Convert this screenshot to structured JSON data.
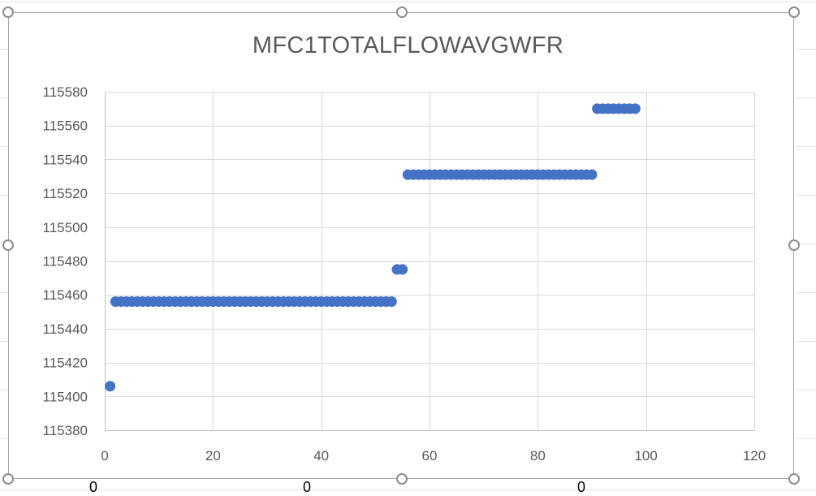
{
  "window": {
    "cell_fragments": [
      "0",
      "0",
      "0"
    ]
  },
  "chart_data": {
    "type": "scatter",
    "title": "MFC1TOTALFLOWAVGWFR",
    "xlabel": "",
    "ylabel": "",
    "xlim": [
      0,
      120
    ],
    "ylim": [
      115380,
      115580
    ],
    "x_ticks": [
      0,
      20,
      40,
      60,
      80,
      100,
      120
    ],
    "y_ticks": [
      115380,
      115400,
      115420,
      115440,
      115460,
      115480,
      115500,
      115520,
      115540,
      115560,
      115580
    ],
    "grid": true,
    "legend": "none",
    "marker_color": "#4472c4",
    "series": [
      {
        "points": [
          [
            1,
            115406
          ],
          [
            2,
            115456
          ],
          [
            3,
            115456
          ],
          [
            4,
            115456
          ],
          [
            5,
            115456
          ],
          [
            6,
            115456
          ],
          [
            7,
            115456
          ],
          [
            8,
            115456
          ],
          [
            9,
            115456
          ],
          [
            10,
            115456
          ],
          [
            11,
            115456
          ],
          [
            12,
            115456
          ],
          [
            13,
            115456
          ],
          [
            14,
            115456
          ],
          [
            15,
            115456
          ],
          [
            16,
            115456
          ],
          [
            17,
            115456
          ],
          [
            18,
            115456
          ],
          [
            19,
            115456
          ],
          [
            20,
            115456
          ],
          [
            21,
            115456
          ],
          [
            22,
            115456
          ],
          [
            23,
            115456
          ],
          [
            24,
            115456
          ],
          [
            25,
            115456
          ],
          [
            26,
            115456
          ],
          [
            27,
            115456
          ],
          [
            28,
            115456
          ],
          [
            29,
            115456
          ],
          [
            30,
            115456
          ],
          [
            31,
            115456
          ],
          [
            32,
            115456
          ],
          [
            33,
            115456
          ],
          [
            34,
            115456
          ],
          [
            35,
            115456
          ],
          [
            36,
            115456
          ],
          [
            37,
            115456
          ],
          [
            38,
            115456
          ],
          [
            39,
            115456
          ],
          [
            40,
            115456
          ],
          [
            41,
            115456
          ],
          [
            42,
            115456
          ],
          [
            43,
            115456
          ],
          [
            44,
            115456
          ],
          [
            45,
            115456
          ],
          [
            46,
            115456
          ],
          [
            47,
            115456
          ],
          [
            48,
            115456
          ],
          [
            49,
            115456
          ],
          [
            50,
            115456
          ],
          [
            51,
            115456
          ],
          [
            52,
            115456
          ],
          [
            53,
            115456
          ],
          [
            54,
            115475
          ],
          [
            55,
            115475
          ],
          [
            56,
            115531
          ],
          [
            57,
            115531
          ],
          [
            58,
            115531
          ],
          [
            59,
            115531
          ],
          [
            60,
            115531
          ],
          [
            61,
            115531
          ],
          [
            62,
            115531
          ],
          [
            63,
            115531
          ],
          [
            64,
            115531
          ],
          [
            65,
            115531
          ],
          [
            66,
            115531
          ],
          [
            67,
            115531
          ],
          [
            68,
            115531
          ],
          [
            69,
            115531
          ],
          [
            70,
            115531
          ],
          [
            71,
            115531
          ],
          [
            72,
            115531
          ],
          [
            73,
            115531
          ],
          [
            74,
            115531
          ],
          [
            75,
            115531
          ],
          [
            76,
            115531
          ],
          [
            77,
            115531
          ],
          [
            78,
            115531
          ],
          [
            79,
            115531
          ],
          [
            80,
            115531
          ],
          [
            81,
            115531
          ],
          [
            82,
            115531
          ],
          [
            83,
            115531
          ],
          [
            84,
            115531
          ],
          [
            85,
            115531
          ],
          [
            86,
            115531
          ],
          [
            87,
            115531
          ],
          [
            88,
            115531
          ],
          [
            89,
            115531
          ],
          [
            90,
            115531
          ],
          [
            91,
            115570
          ],
          [
            92,
            115570
          ],
          [
            93,
            115570
          ],
          [
            94,
            115570
          ],
          [
            95,
            115570
          ],
          [
            96,
            115570
          ],
          [
            97,
            115570
          ],
          [
            98,
            115570
          ]
        ]
      }
    ]
  }
}
